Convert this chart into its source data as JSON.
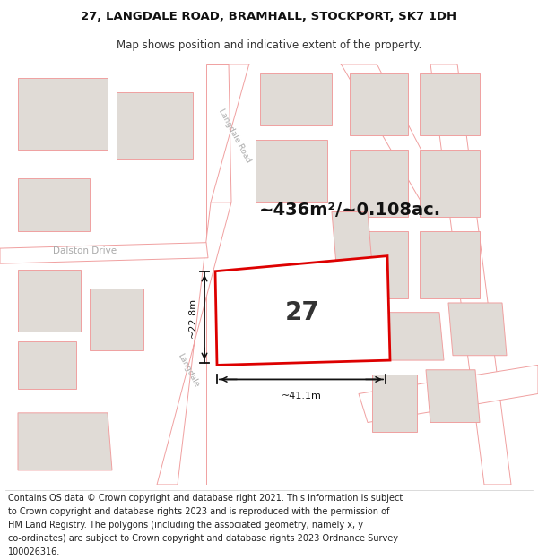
{
  "title_line1": "27, LANGDALE ROAD, BRAMHALL, STOCKPORT, SK7 1DH",
  "title_line2": "Map shows position and indicative extent of the property.",
  "footer_lines": [
    "Contains OS data © Crown copyright and database right 2021. This information is subject",
    "to Crown copyright and database rights 2023 and is reproduced with the permission of",
    "HM Land Registry. The polygons (including the associated geometry, namely x, y",
    "co-ordinates) are subject to Crown copyright and database rights 2023 Ordnance Survey",
    "100026316."
  ],
  "map_bg": "#f5f2ee",
  "block_fill": "#e0dbd6",
  "block_ec": "#f0a0a0",
  "road_fill": "#ffffff",
  "road_ec": "#f0a0a0",
  "highlight_color": "#dd0000",
  "area_label": "~436m²/~0.108ac.",
  "property_number": "27",
  "dim_width": "~41.1m",
  "dim_height": "~22.8m",
  "road_label_langdale_road": "Langdale Road",
  "road_label_langdale": "Langdale",
  "road_label_dalston": "Dalston Drive",
  "label_color": "#aaaaaa",
  "dim_color": "#111111",
  "title_fontsize": 9.5,
  "subtitle_fontsize": 8.5,
  "footer_fontsize": 7.0,
  "area_fontsize": 14,
  "prop_num_fontsize": 20,
  "dim_fontsize": 8
}
